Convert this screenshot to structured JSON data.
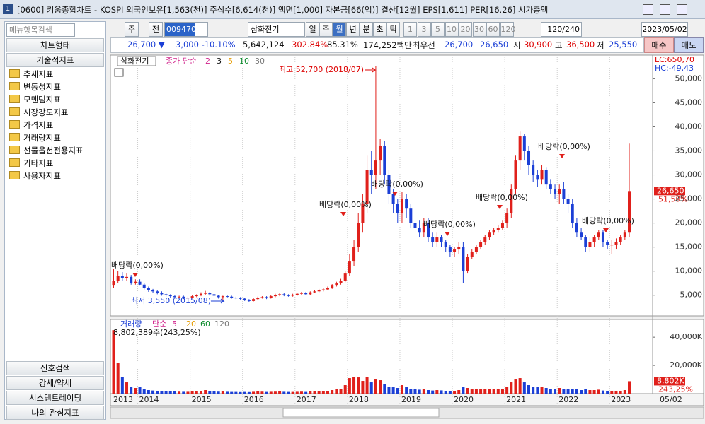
{
  "window": {
    "badge": "1",
    "title": "[0600] 키움종합차트 - KOSPI 외국인보유[1,563(천)] 주식수[6,614(천)] 액면[1,000] 자본금[66(억)] 결산[12월] EPS[1,611] PER[16.26] 시가총액"
  },
  "sidebar": {
    "search": "메뉴항목검색",
    "top": [
      "차트형태",
      "기술적지표"
    ],
    "folders": [
      "추세지표",
      "변동성지표",
      "모멘텀지표",
      "시장강도지표",
      "가격지표",
      "거래량지표",
      "선물옵션전용지표",
      "기타지표",
      "사용자지표"
    ],
    "bottom": [
      "신호검색",
      "강세/약세",
      "시스템트레이딩",
      "나의 관심지표"
    ]
  },
  "toolbar": {
    "stock_type": "주",
    "prev": "전",
    "code": "009470",
    "name": "삼화전기",
    "periods": [
      "일",
      "주",
      "월",
      "년",
      "분",
      "초",
      "틱"
    ],
    "nums": [
      "1",
      "3",
      "5",
      "10",
      "20",
      "30",
      "60",
      "120"
    ],
    "count": "120/240",
    "date": "2023/05/02"
  },
  "quote": {
    "price": "26,700 ▼",
    "change": "3,000 -10.10%",
    "volume": "5,642,124",
    "ratio1": "302.84%",
    "ratio2": "85.31%",
    "amount": "174,252백만",
    "best_label": "최우선",
    "bid": "26,700",
    "ask": "26,650",
    "open_label": "시",
    "open": "30,900",
    "high_label": "고",
    "high": "36,500",
    "low_label": "저",
    "low": "25,550",
    "buy": "매수",
    "sell": "매도"
  },
  "chart_data": {
    "type": "candlestick",
    "name": "삼화전기",
    "ma_label": "종가 단순",
    "ma_periods": [
      "2",
      "3",
      "5",
      "10",
      "30"
    ],
    "up_color": "#e0201b",
    "down_color": "#1b3fd6",
    "lc": "LC:650,70",
    "hc": "HC:-49,43",
    "price_tag": "26,650",
    "price_pct": "51,59%",
    "last_date": "05/02",
    "annotations": [
      "최고 52,700 (2018/07)",
      "최저 3,550 (2015/08)",
      "배당락(0,00%)",
      "배당락(0,00%)",
      "배당락(0,00%)",
      "배당락(0,00%)",
      "배당락(0,00%)",
      "배당락(0,00%)",
      "배당락(0,00%)"
    ],
    "categories": [
      "2013",
      null,
      null,
      null,
      null,
      null,
      "2014",
      null,
      null,
      null,
      null,
      null,
      null,
      null,
      null,
      null,
      null,
      null,
      "2015",
      null,
      null,
      null,
      null,
      null,
      null,
      null,
      null,
      null,
      null,
      null,
      "2016",
      null,
      null,
      null,
      null,
      null,
      null,
      null,
      null,
      null,
      null,
      null,
      "2017",
      null,
      null,
      null,
      null,
      null,
      null,
      null,
      null,
      null,
      null,
      null,
      "2018",
      null,
      null,
      null,
      null,
      null,
      null,
      null,
      null,
      null,
      null,
      null,
      "2019",
      null,
      null,
      null,
      null,
      null,
      null,
      null,
      null,
      null,
      null,
      null,
      "2020",
      null,
      null,
      null,
      null,
      null,
      null,
      null,
      null,
      null,
      null,
      null,
      "2021",
      null,
      null,
      null,
      null,
      null,
      null,
      null,
      null,
      null,
      null,
      null,
      "2022",
      null,
      null,
      null,
      null,
      null,
      null,
      null,
      null,
      null,
      null,
      null,
      "2023",
      null,
      null,
      null,
      null
    ],
    "open": [
      7000,
      8000,
      9000,
      8500,
      8800,
      7600,
      7800,
      7200,
      6500,
      6000,
      5800,
      5500,
      5200,
      5000,
      4800,
      4600,
      4700,
      4500,
      4500,
      4800,
      5000,
      5300,
      5500,
      5200,
      4900,
      4600,
      4800,
      4700,
      4500,
      4400,
      4300,
      4000,
      3800,
      4200,
      4500,
      4600,
      4400,
      4800,
      5000,
      5200,
      5000,
      4900,
      5100,
      5300,
      5500,
      5200,
      5600,
      5800,
      6000,
      6200,
      6500,
      7000,
      7500,
      8000,
      9500,
      12000,
      15000,
      20000,
      24000,
      31000,
      30000,
      33000,
      36000,
      30000,
      26000,
      24000,
      22000,
      25000,
      23000,
      20000,
      19000,
      18000,
      20000,
      17000,
      16000,
      17000,
      16000,
      15000,
      14000,
      14500,
      15000,
      10000,
      13000,
      14000,
      15000,
      16000,
      17000,
      18000,
      18500,
      19000,
      20000,
      22000,
      27000,
      33000,
      38000,
      35000,
      32000,
      30000,
      29000,
      31000,
      28000,
      27000,
      26000,
      27000,
      25000,
      24000,
      20000,
      18000,
      17000,
      15000,
      16000,
      17000,
      18000,
      16000,
      15500,
      15500,
      16000,
      17000,
      18000
    ],
    "high": [
      10500,
      10000,
      9800,
      9500,
      9200,
      8300,
      8300,
      7500,
      6800,
      6300,
      6000,
      5800,
      5500,
      5200,
      5000,
      4900,
      4900,
      4700,
      5000,
      5200,
      5600,
      5900,
      5700,
      5400,
      5000,
      4900,
      5000,
      4900,
      4700,
      4600,
      4500,
      4200,
      4400,
      4700,
      4800,
      4800,
      5000,
      5300,
      5400,
      5400,
      5200,
      5300,
      5500,
      5700,
      5700,
      5800,
      6100,
      6300,
      6500,
      6800,
      7300,
      7800,
      8400,
      10000,
      13500,
      16500,
      22000,
      26000,
      34000,
      35000,
      52700,
      37500,
      37000,
      31000,
      27000,
      25000,
      26500,
      26000,
      24000,
      21000,
      20500,
      21000,
      21000,
      18000,
      18000,
      17500,
      16500,
      15500,
      15000,
      16000,
      16000,
      13500,
      14500,
      15500,
      16500,
      17500,
      18500,
      19000,
      19500,
      20500,
      23000,
      28000,
      34000,
      39000,
      38500,
      36000,
      33000,
      31000,
      32000,
      31500,
      29000,
      28000,
      28000,
      28500,
      26000,
      25000,
      21000,
      19000,
      17500,
      17000,
      17500,
      18500,
      18500,
      16500,
      16500,
      16800,
      17500,
      18500,
      36500
    ],
    "low": [
      6500,
      7500,
      8000,
      8000,
      7200,
      7200,
      7000,
      6200,
      5700,
      5500,
      5200,
      4900,
      4700,
      4500,
      4300,
      4400,
      4200,
      4200,
      4300,
      4600,
      4800,
      5000,
      4900,
      4700,
      4300,
      3550,
      4500,
      4300,
      4200,
      4100,
      3800,
      3600,
      3700,
      4000,
      4300,
      4200,
      4300,
      4600,
      4800,
      4800,
      4700,
      4700,
      4900,
      5100,
      5000,
      5000,
      5400,
      5600,
      5800,
      6000,
      6300,
      6800,
      7200,
      7700,
      9000,
      11000,
      14000,
      18000,
      22000,
      26000,
      27000,
      30000,
      28000,
      24000,
      22000,
      20000,
      20000,
      21000,
      19000,
      18000,
      17000,
      17000,
      16000,
      15000,
      15000,
      15000,
      14000,
      13000,
      13000,
      13500,
      7500,
      9500,
      12500,
      13500,
      14500,
      15500,
      16500,
      17500,
      18000,
      18500,
      19000,
      21000,
      26000,
      31000,
      33000,
      30000,
      28500,
      27500,
      28000,
      27000,
      26000,
      25000,
      24000,
      24000,
      22000,
      19000,
      17000,
      16500,
      14000,
      14000,
      15000,
      16500,
      15000,
      14500,
      13500,
      14500,
      15500,
      16500,
      17000
    ],
    "close": [
      8000,
      9000,
      8500,
      8800,
      7600,
      7800,
      7200,
      6500,
      6000,
      5800,
      5500,
      5200,
      5000,
      4800,
      4600,
      4700,
      4500,
      4500,
      4800,
      5000,
      5300,
      5500,
      5200,
      4900,
      4600,
      4800,
      4700,
      4500,
      4400,
      4300,
      4000,
      3800,
      4200,
      4500,
      4600,
      4400,
      4800,
      5000,
      5200,
      5000,
      4900,
      5100,
      5300,
      5500,
      5200,
      5600,
      5800,
      6000,
      6200,
      6500,
      7000,
      7500,
      8000,
      9500,
      12000,
      15000,
      20000,
      24000,
      31000,
      30000,
      33000,
      36000,
      30000,
      26000,
      24000,
      22000,
      25000,
      23000,
      20000,
      19000,
      18000,
      20000,
      17000,
      16000,
      17000,
      16000,
      15000,
      14000,
      14500,
      15000,
      10000,
      13000,
      14000,
      15000,
      16000,
      17000,
      18000,
      18500,
      19000,
      20000,
      22000,
      27000,
      33000,
      38000,
      35000,
      32000,
      30000,
      29000,
      31000,
      28000,
      27000,
      26000,
      27000,
      25000,
      24000,
      20000,
      18000,
      17000,
      15000,
      16000,
      17000,
      18000,
      16000,
      15500,
      15500,
      16000,
      17000,
      18000,
      26650
    ],
    "ylim": [
      700,
      54900
    ],
    "yticks": [
      {
        "value": 5000,
        "label": "5,000"
      },
      {
        "value": 10000,
        "label": "10,000"
      },
      {
        "value": 15000,
        "label": "15,000"
      },
      {
        "value": 20000,
        "label": "20,000"
      },
      {
        "value": 25000,
        "label": "25,000"
      },
      {
        "value": 30000,
        "label": "30,000"
      },
      {
        "value": 35000,
        "label": "35,000"
      },
      {
        "value": 40000,
        "label": "40,000"
      },
      {
        "value": 45000,
        "label": "45,000"
      },
      {
        "value": 50000,
        "label": "50,000"
      }
    ],
    "volume": {
      "name": "거래량",
      "ma_label": "단순",
      "ma_periods": [
        "5",
        "20",
        "60",
        "120"
      ],
      "last_label": "8,802,389주(243,25%)",
      "tag": "8,802K",
      "tag_pct": "243,25%",
      "values": [
        45000,
        22000,
        12000,
        8000,
        5000,
        4000,
        4500,
        3000,
        2500,
        2200,
        2000,
        1800,
        1600,
        1500,
        1500,
        1400,
        1300,
        1300,
        1500,
        1600,
        2000,
        2500,
        1800,
        1500,
        1400,
        1600,
        1300,
        1200,
        1200,
        1100,
        1200,
        1100,
        1300,
        1500,
        1400,
        1200,
        1300,
        1400,
        1500,
        1300,
        1200,
        1200,
        1300,
        1400,
        1200,
        1500,
        1600,
        1700,
        1800,
        2000,
        2500,
        3000,
        3500,
        6000,
        11000,
        12000,
        11500,
        9000,
        12000,
        8000,
        10000,
        9500,
        7000,
        5000,
        4500,
        4000,
        6000,
        4500,
        3500,
        3000,
        2800,
        3500,
        2500,
        2200,
        2500,
        2300,
        2000,
        2000,
        2000,
        2500,
        5000,
        4000,
        3000,
        3500,
        3000,
        3200,
        3500,
        3000,
        3200,
        3500,
        5000,
        8000,
        10000,
        11000,
        8000,
        6000,
        5000,
        4500,
        5000,
        4000,
        3500,
        3000,
        4000,
        3500,
        3000,
        3500,
        3000,
        2500,
        3000,
        2500,
        2500,
        2800,
        2200,
        2000,
        2000,
        1800,
        2000,
        2500,
        8802
      ],
      "ylim": [
        0,
        52600
      ],
      "yticks": [
        {
          "value": 20000,
          "label": "20,000K"
        },
        {
          "value": 40000,
          "label": "40,000K"
        }
      ]
    }
  }
}
